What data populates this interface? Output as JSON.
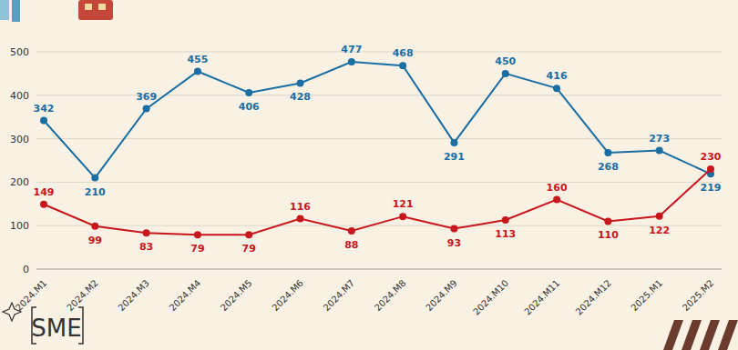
{
  "chart_data": {
    "type": "line",
    "categories": [
      "2024.M1",
      "2024.M2",
      "2024.M3",
      "2024.M4",
      "2024.M5",
      "2024.M6",
      "2024.M7",
      "2024.M8",
      "2024.M9",
      "2024.M10",
      "2024.M11",
      "2024.M12",
      "2025.M1",
      "2025.M2"
    ],
    "series": [
      {
        "color": "#1b6ea3",
        "marker": "circle",
        "values": [
          342,
          210,
          369,
          455,
          406,
          428,
          477,
          468,
          291,
          450,
          416,
          268,
          273,
          219
        ]
      },
      {
        "color": "#c8161d",
        "marker": "circle",
        "values": [
          149,
          99,
          83,
          79,
          79,
          116,
          88,
          121,
          93,
          113,
          160,
          110,
          122,
          230
        ]
      }
    ],
    "ylim": [
      0,
      500
    ],
    "yticks": [
      0,
      100,
      200,
      300,
      400,
      500
    ],
    "grid": true,
    "data_labels": true,
    "annotations": [
      "SME"
    ]
  }
}
